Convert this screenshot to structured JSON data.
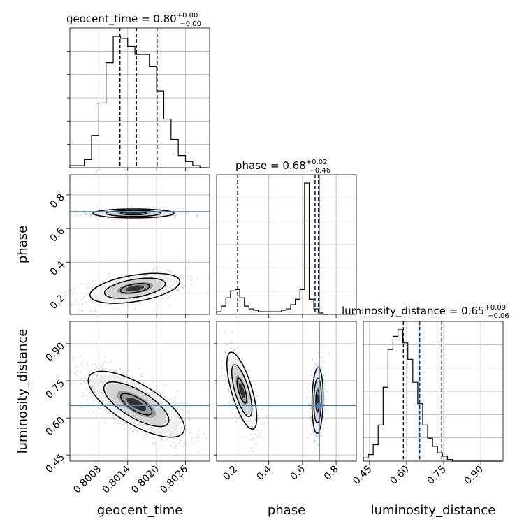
{
  "chart_data": {
    "type": "corner",
    "parameters": [
      "geocent_time",
      "phase",
      "luminosity_distance"
    ],
    "injection": {
      "phase": 0.7,
      "luminosity_distance": 0.65,
      "geocent_time": null
    },
    "grid": true,
    "axes": {
      "geocent_time": {
        "range": [
          0.8002,
          0.8031
        ],
        "ticks": [
          0.8008,
          0.8014,
          0.802,
          0.8026
        ],
        "tick_labels": [
          "0.8008",
          "0.8014",
          "0.8020",
          "0.8026"
        ]
      },
      "phase": {
        "range": [
          0.09,
          0.92
        ],
        "ticks": [
          0.2,
          0.4,
          0.6,
          0.8
        ],
        "tick_labels": [
          "0.2",
          "0.4",
          "0.6",
          "0.8"
        ]
      },
      "luminosity_distance": {
        "range": [
          0.425,
          0.99
        ],
        "ticks": [
          0.45,
          0.6,
          0.75,
          0.9
        ],
        "tick_labels": [
          "0.45",
          "0.60",
          "0.75",
          "0.90"
        ]
      }
    },
    "titles": [
      {
        "param": "geocent_time",
        "prefix": "geocent_time = 0.80",
        "plus": "+0.00",
        "minus": "−0.00"
      },
      {
        "param": "phase",
        "prefix": "phase = 0.68",
        "plus": "+0.02",
        "minus": "−0.46"
      },
      {
        "param": "luminosity_distance",
        "prefix": "luminosity_distance = 0.65",
        "plus": "+0.09",
        "minus": "−0.06"
      }
    ],
    "quantiles": {
      "geocent_time": [
        0.80124,
        0.80158,
        0.80201
      ],
      "phase": [
        0.215,
        0.675,
        0.695
      ],
      "luminosity_distance": [
        0.587,
        0.653,
        0.742
      ]
    },
    "histograms": {
      "geocent_time": {
        "x0": 0.8002,
        "step": 0.00015,
        "counts": [
          1,
          1,
          4,
          16,
          32,
          52,
          65,
          64,
          60,
          56,
          56,
          50,
          38,
          24,
          14,
          6,
          3,
          1,
          0
        ]
      },
      "phase": {
        "x0": 0.09,
        "step": 0.0275,
        "counts": [
          2,
          6,
          12,
          17,
          18,
          12,
          6,
          4,
          3,
          2,
          2,
          2,
          2,
          2,
          3,
          4,
          7,
          11,
          18,
          95,
          11,
          4,
          1,
          0
        ]
      },
      "luminosity_distance": {
        "x0": 0.425,
        "step": 0.02,
        "counts": [
          2,
          4,
          10,
          22,
          45,
          68,
          76,
          80,
          72,
          62,
          48,
          35,
          22,
          14,
          9,
          5,
          3,
          1,
          0,
          0,
          0,
          0,
          0,
          0,
          0,
          0,
          0,
          0
        ]
      }
    },
    "modes": [
      {
        "pair": [
          "geocent_time",
          "phase"
        ],
        "center": [
          0.80152,
          0.69
        ],
        "sd": [
          0.00038,
          0.012
        ],
        "rho": 0.0,
        "weight": 0.55
      },
      {
        "pair": [
          "geocent_time",
          "phase"
        ],
        "center": [
          0.80155,
          0.245
        ],
        "sd": [
          0.00042,
          0.04
        ],
        "rho": 0.45,
        "weight": 0.45
      },
      {
        "pair": [
          "geocent_time",
          "luminosity_distance"
        ],
        "center": [
          0.80158,
          0.655
        ],
        "sd": [
          0.00045,
          0.06
        ],
        "rho": -0.72,
        "weight": 1.0
      },
      {
        "pair": [
          "phase",
          "luminosity_distance"
        ],
        "center": [
          0.24,
          0.71
        ],
        "sd": [
          0.04,
          0.07
        ],
        "rho": -0.7,
        "weight": 0.45
      },
      {
        "pair": [
          "phase",
          "luminosity_distance"
        ],
        "center": [
          0.69,
          0.67
        ],
        "sd": [
          0.015,
          0.06
        ],
        "rho": 0.1,
        "weight": 0.55
      }
    ]
  }
}
